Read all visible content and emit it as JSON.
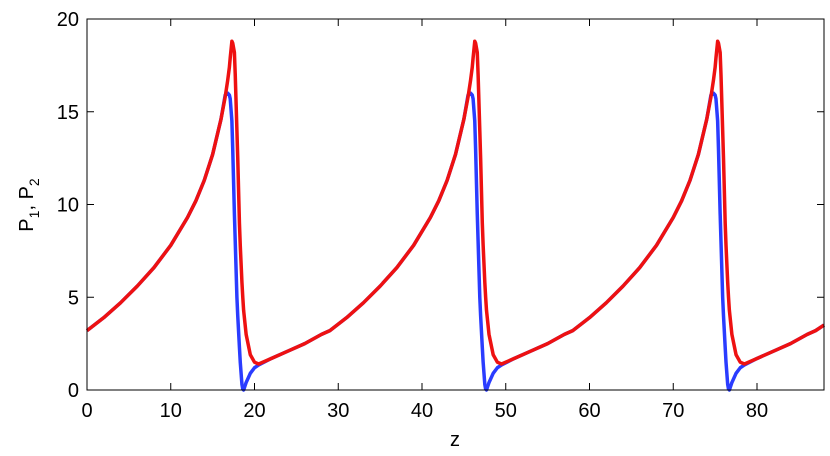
{
  "chart_data": {
    "type": "line",
    "xlabel": "z",
    "ylabel": [
      "P",
      "1",
      ", P",
      "2"
    ],
    "xlim": [
      0,
      88
    ],
    "ylim": [
      0,
      20
    ],
    "xticks": [
      0,
      10,
      20,
      30,
      40,
      50,
      60,
      70,
      80
    ],
    "yticks": [
      0,
      5,
      10,
      15,
      20
    ],
    "grid": false,
    "x": [
      0,
      2,
      4,
      6,
      8,
      10,
      12,
      13,
      14,
      15,
      16,
      16.5,
      16.8,
      17,
      17.1,
      17.3,
      17.4,
      17.6,
      17.7,
      17.9,
      18,
      18.2,
      18.3,
      18.5,
      18.6,
      18.7,
      19,
      19.5,
      20,
      20.5,
      22,
      24,
      26,
      28,
      29,
      31,
      33,
      35,
      37,
      39,
      41,
      42,
      43,
      44,
      45,
      45.5,
      45.8,
      46,
      46.1,
      46.3,
      46.4,
      46.6,
      46.7,
      46.9,
      47,
      47.2,
      47.3,
      47.5,
      47.6,
      47.7,
      48,
      48.5,
      49,
      49.5,
      51,
      53,
      55,
      57,
      58,
      60,
      62,
      64,
      66,
      68,
      70,
      71,
      72,
      73,
      74,
      74.5,
      74.8,
      75,
      75.1,
      75.3,
      75.4,
      75.6,
      75.7,
      75.9,
      76,
      76.2,
      76.3,
      76.5,
      76.6,
      76.7,
      77,
      77.5,
      78,
      78.5,
      80,
      82,
      84,
      86,
      87,
      88
    ],
    "series": [
      {
        "color": "#2a3cff",
        "values": [
          3.2,
          3.9,
          4.7,
          5.6,
          6.6,
          7.8,
          9.3,
          10.2,
          11.3,
          12.7,
          14.6,
          15.9,
          16.0,
          15.9,
          15.7,
          14.5,
          13,
          9.5,
          8,
          5,
          4,
          2.3,
          1.5,
          0.3,
          0.05,
          0,
          0.4,
          0.9,
          1.2,
          1.35,
          1.7,
          2.1,
          2.5,
          3.0,
          3.2,
          3.9,
          4.7,
          5.6,
          6.6,
          7.8,
          9.3,
          10.2,
          11.3,
          12.7,
          14.6,
          15.9,
          16.0,
          15.9,
          15.7,
          14.5,
          13,
          9.5,
          8,
          5,
          4,
          2.3,
          1.5,
          0.3,
          0.05,
          0,
          0.4,
          0.9,
          1.2,
          1.35,
          1.7,
          2.1,
          2.5,
          3.0,
          3.2,
          3.9,
          4.7,
          5.6,
          6.6,
          7.8,
          9.3,
          10.2,
          11.3,
          12.7,
          14.6,
          15.9,
          16.0,
          15.9,
          15.7,
          14.5,
          13,
          9.5,
          8,
          5,
          4,
          2.3,
          1.5,
          0.3,
          0.05,
          0,
          0.4,
          0.9,
          1.2,
          1.35,
          1.7,
          2.1,
          2.5,
          3.0,
          3.2,
          3.5
        ]
      },
      {
        "color": "#ee1111",
        "values": [
          3.2,
          3.9,
          4.7,
          5.6,
          6.6,
          7.8,
          9.3,
          10.2,
          11.3,
          12.7,
          14.6,
          15.8,
          16.7,
          17.4,
          17.9,
          18.8,
          18.7,
          18.2,
          17,
          14,
          12.5,
          9,
          7.8,
          5.8,
          5,
          4.3,
          3,
          1.9,
          1.5,
          1.4,
          1.7,
          2.1,
          2.5,
          3.0,
          3.2,
          3.9,
          4.7,
          5.6,
          6.6,
          7.8,
          9.3,
          10.2,
          11.3,
          12.7,
          14.6,
          15.8,
          16.7,
          17.4,
          17.9,
          18.8,
          18.7,
          18.2,
          17,
          14,
          12.5,
          9,
          7.8,
          5.8,
          5,
          4.3,
          3,
          1.9,
          1.5,
          1.4,
          1.7,
          2.1,
          2.5,
          3.0,
          3.2,
          3.9,
          4.7,
          5.6,
          6.6,
          7.8,
          9.3,
          10.2,
          11.3,
          12.7,
          14.6,
          15.8,
          16.7,
          17.4,
          17.9,
          18.8,
          18.7,
          18.2,
          17,
          14,
          12.5,
          9,
          7.8,
          5.8,
          5,
          4.3,
          3,
          1.9,
          1.5,
          1.4,
          1.7,
          2.1,
          2.5,
          3.0,
          3.2,
          3.5
        ]
      }
    ]
  }
}
